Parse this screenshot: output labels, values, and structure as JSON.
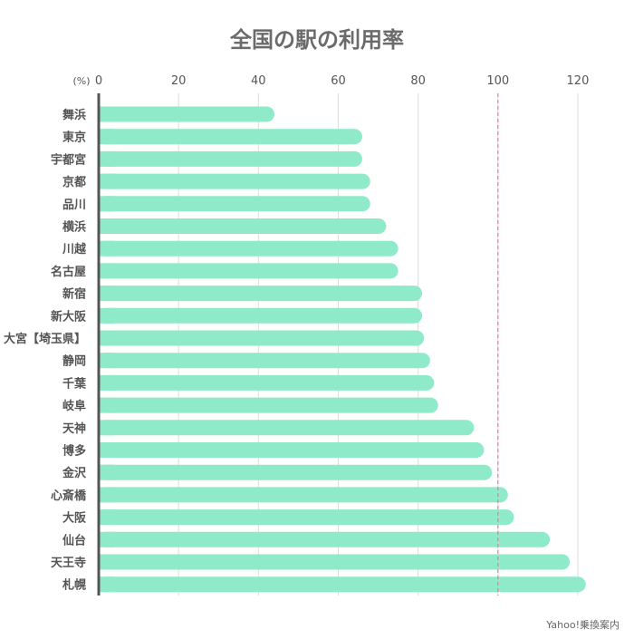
{
  "chart_data": {
    "type": "bar",
    "orientation": "horizontal",
    "title": "全国の駅の利用率",
    "unit_label": "(%)",
    "categories": [
      "舞浜",
      "東京",
      "宇都宮",
      "京都",
      "品川",
      "横浜",
      "川越",
      "名古屋",
      "新宿",
      "新大阪",
      "大宮【埼玉県】",
      "静岡",
      "千葉",
      "岐阜",
      "天神",
      "博多",
      "金沢",
      "心斎橋",
      "大阪",
      "仙台",
      "天王寺",
      "札幌"
    ],
    "values": [
      44,
      66,
      66,
      68,
      68,
      72,
      75,
      75,
      81,
      81,
      81.5,
      83,
      84,
      85,
      94,
      96.5,
      98.5,
      102.5,
      104,
      113,
      118,
      122
    ],
    "xlim": [
      0,
      125
    ],
    "xticks": [
      0,
      20,
      40,
      60,
      80,
      100,
      120
    ],
    "reference_line": 100,
    "grid": true,
    "bar_color": "#8eeac8",
    "reference_line_color": "#ff6fa0",
    "axis_color": "#555555",
    "grid_color": "#dddddd"
  },
  "source": "Yahoo!乗換案内"
}
